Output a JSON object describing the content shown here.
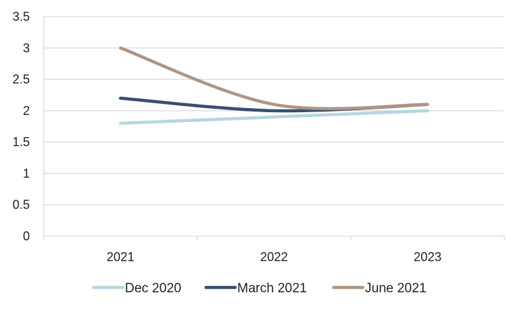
{
  "chart_data": {
    "type": "line",
    "title": "",
    "xlabel": "",
    "ylabel": "",
    "categories": [
      "2021",
      "2022",
      "2023"
    ],
    "ylim": [
      0,
      3.5
    ],
    "yticks": [
      "0",
      "0.5",
      "1",
      "1.5",
      "2",
      "2.5",
      "3",
      "3.5"
    ],
    "grid": true,
    "legend_position": "bottom",
    "series": [
      {
        "name": "Dec 2020",
        "color": "#b7d6df",
        "values": [
          1.8,
          1.9,
          2.0
        ]
      },
      {
        "name": "March 2021",
        "color": "#3a4e6e",
        "values": [
          2.2,
          2.0,
          2.1
        ]
      },
      {
        "name": "June 2021",
        "color": "#ae9583",
        "values": [
          3.0,
          2.1,
          2.1
        ]
      }
    ]
  }
}
